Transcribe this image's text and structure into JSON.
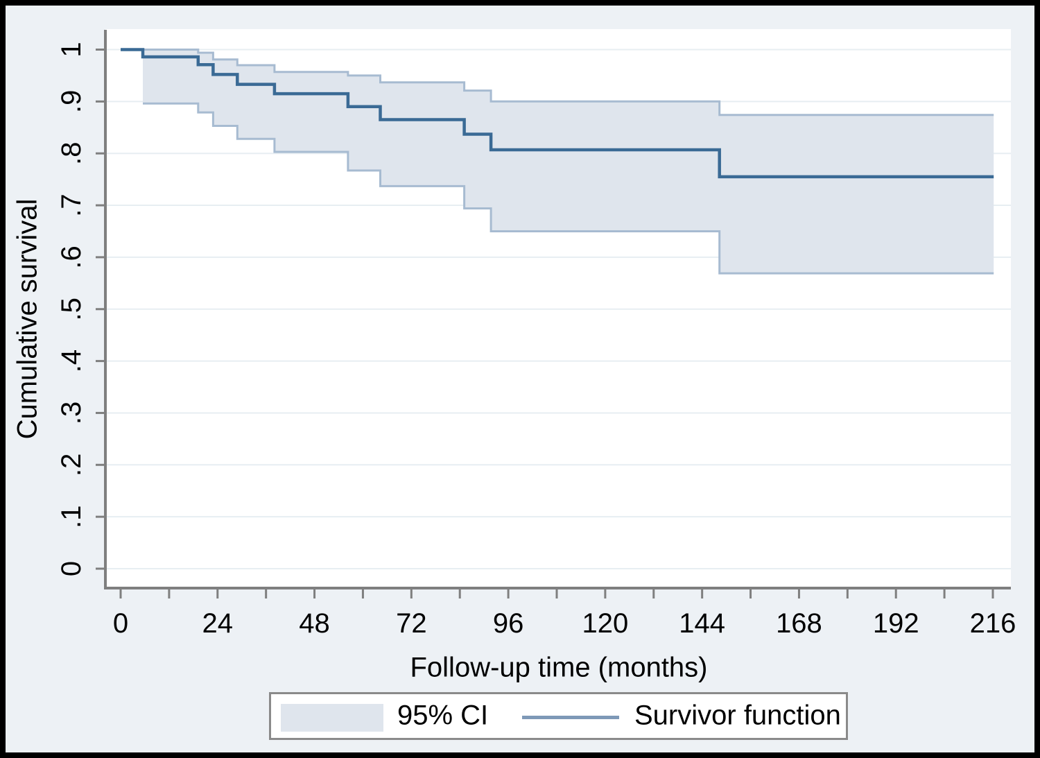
{
  "figure": {
    "kind": "Kaplan-Meier survival plot with confidence band"
  },
  "colors": {
    "figure_background": "#edf1f5",
    "figure_border": "#000000",
    "plot_background": "#ffffff",
    "gridline": "#e7eef2",
    "axis": "#7f7f7f",
    "tick": "#7f7f7f",
    "text": "#000000",
    "ci_fill": "#dfe5ed",
    "ci_edge": "#a7bbd1",
    "survivor_line": "#3a6a95",
    "legend_border": "#8a8a8a",
    "legend_line_sample": "#7e99b7"
  },
  "y_axis": {
    "title": "Cumulative survival",
    "tick_labels": [
      "0",
      ".1",
      ".2",
      ".3",
      ".4",
      ".5",
      ".6",
      ".7",
      ".8",
      ".9",
      "1"
    ],
    "tick_values": [
      0,
      0.1,
      0.2,
      0.3,
      0.4,
      0.5,
      0.6,
      0.7,
      0.8,
      0.9,
      1
    ]
  },
  "x_axis": {
    "title": "Follow-up time (months)",
    "tick_labels": [
      "0",
      "24",
      "48",
      "72",
      "96",
      "120",
      "144",
      "168",
      "192",
      "216"
    ],
    "tick_values": [
      0,
      24,
      48,
      72,
      96,
      120,
      144,
      168,
      192,
      216
    ],
    "minor_tick_interval": 12,
    "minor_tick_max": 216
  },
  "legend": {
    "ci_label": "95% CI",
    "line_label": "Survivor function"
  },
  "chart_data": {
    "type": "line",
    "subtype": "kaplan-meier-step",
    "title": "",
    "xlabel": "Follow-up time (months)",
    "ylabel": "Cumulative survival",
    "xlim": [
      0,
      222
    ],
    "ylim": [
      0,
      1
    ],
    "grid": "horizontal",
    "legend_position": "bottom",
    "start_value": 1.0,
    "ci_start_time": 5.5,
    "end_time": 216.2,
    "event_times": [
      5.5,
      19.2,
      22.9,
      28.9,
      38.1,
      56.3,
      64.3,
      85.1,
      91.7,
      148.3
    ],
    "series": [
      {
        "name": "Survivor function",
        "values": [
          0.986,
          0.971,
          0.952,
          0.933,
          0.915,
          0.89,
          0.865,
          0.837,
          0.807,
          0.755
        ]
      },
      {
        "name": "95% CI upper",
        "values": [
          1.0,
          0.994,
          0.981,
          0.97,
          0.957,
          0.95,
          0.937,
          0.921,
          0.9,
          0.874
        ]
      },
      {
        "name": "95% CI lower",
        "values": [
          0.896,
          0.879,
          0.853,
          0.828,
          0.803,
          0.767,
          0.737,
          0.694,
          0.65,
          0.569
        ]
      }
    ]
  }
}
